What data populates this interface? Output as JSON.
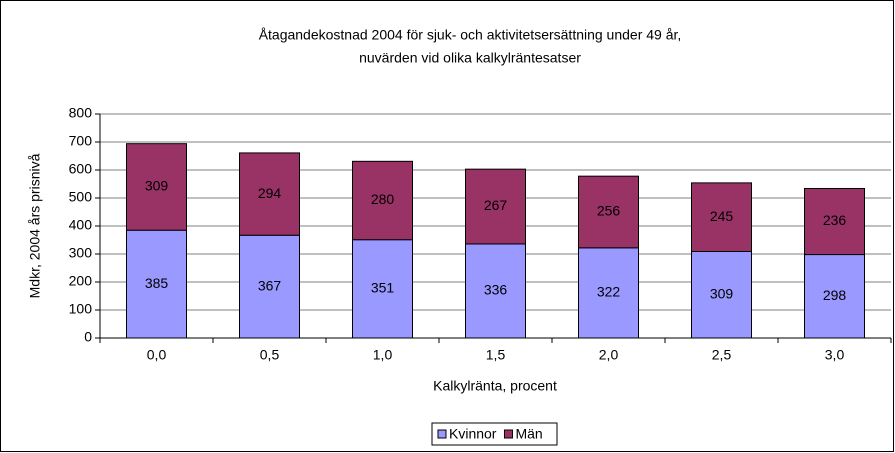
{
  "chart_data": {
    "type": "stacked_bar",
    "title": [
      "Åtagandekostnad 2004 för sjuk- och aktivitetsersättning under 49 år,",
      "nuvärden vid olika kalkylräntesatser"
    ],
    "x_label": "Kalkylränta, procent",
    "y_label": "Mdkr, 2004 års prisnivå",
    "categories": [
      "0,0",
      "0,5",
      "1,0",
      "1,5",
      "2,0",
      "2,5",
      "3,0"
    ],
    "series": [
      {
        "name": "Kvinnor",
        "color": "#9999ff",
        "values": [
          385,
          367,
          351,
          336,
          322,
          309,
          298
        ]
      },
      {
        "name": "Män",
        "color": "#993366",
        "values": [
          309,
          294,
          280,
          267,
          256,
          245,
          236
        ]
      }
    ],
    "ylim": [
      0,
      800
    ],
    "yticks": [
      0,
      100,
      200,
      300,
      400,
      500,
      600,
      700,
      800
    ],
    "grid": true,
    "legend": "bottom"
  }
}
